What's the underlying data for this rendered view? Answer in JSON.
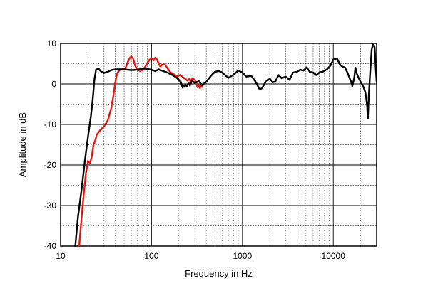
{
  "chart_data": {
    "type": "line",
    "xlabel": "Frequency in Hz",
    "ylabel": "Amplitude in dB",
    "xscale": "log",
    "xlim": [
      10,
      30000
    ],
    "ylim": [
      -40,
      10
    ],
    "grid": true,
    "x_tick_labels": [
      "10",
      "100",
      "1000",
      "10000"
    ],
    "y_tick_labels": [
      "10",
      "0",
      "-10",
      "-20",
      "-30",
      "-40"
    ],
    "series": [
      {
        "color": "#000000",
        "points": [
          [
            14.5,
            -40
          ],
          [
            15.5,
            -33
          ],
          [
            17,
            -26
          ],
          [
            18.5,
            -19
          ],
          [
            20,
            -13
          ],
          [
            21.5,
            -8
          ],
          [
            22.5,
            -4
          ],
          [
            23.5,
            1
          ],
          [
            24.5,
            3.5
          ],
          [
            26,
            3.8
          ],
          [
            28,
            3.0
          ],
          [
            30,
            2.7
          ],
          [
            33,
            3.0
          ],
          [
            36,
            3.4
          ],
          [
            40,
            3.6
          ],
          [
            50,
            3.6
          ],
          [
            60,
            3.4
          ],
          [
            70,
            3.5
          ],
          [
            80,
            3.8
          ],
          [
            90,
            3.7
          ],
          [
            100,
            3.5
          ],
          [
            110,
            3.2
          ],
          [
            120,
            3.6
          ],
          [
            130,
            3.3
          ],
          [
            150,
            2.8
          ],
          [
            170,
            2.2
          ],
          [
            190,
            1.5
          ],
          [
            210,
            0.5
          ],
          [
            220,
            -0.9
          ],
          [
            235,
            -0.2
          ],
          [
            245,
            -0.6
          ],
          [
            255,
            0.3
          ],
          [
            265,
            -0.4
          ],
          [
            280,
            0.8
          ],
          [
            300,
            0.2
          ],
          [
            330,
            0.7
          ],
          [
            360,
            -0.3
          ],
          [
            400,
            0.5
          ],
          [
            450,
            2.0
          ],
          [
            500,
            3.0
          ],
          [
            550,
            3.2
          ],
          [
            600,
            2.8
          ],
          [
            700,
            1.5
          ],
          [
            800,
            2.3
          ],
          [
            900,
            3.3
          ],
          [
            1000,
            2.8
          ],
          [
            1100,
            1.8
          ],
          [
            1250,
            2.0
          ],
          [
            1400,
            0.5
          ],
          [
            1550,
            -1.4
          ],
          [
            1650,
            -1.0
          ],
          [
            1800,
            0.5
          ],
          [
            2000,
            1.3
          ],
          [
            2150,
            0.4
          ],
          [
            2300,
            0.6
          ],
          [
            2500,
            2.2
          ],
          [
            2700,
            1.4
          ],
          [
            3000,
            1.8
          ],
          [
            3300,
            1.0
          ],
          [
            3600,
            2.8
          ],
          [
            4000,
            3.0
          ],
          [
            4300,
            3.5
          ],
          [
            4700,
            3.3
          ],
          [
            5100,
            4.1
          ],
          [
            5500,
            3.0
          ],
          [
            6000,
            2.8
          ],
          [
            6500,
            2.2
          ],
          [
            7000,
            2.8
          ],
          [
            7800,
            3.1
          ],
          [
            8500,
            3.6
          ],
          [
            9300,
            4.5
          ],
          [
            10000,
            6.0
          ],
          [
            11000,
            6.3
          ],
          [
            11800,
            4.8
          ],
          [
            12500,
            4.3
          ],
          [
            13500,
            4.0
          ],
          [
            14500,
            2.5
          ],
          [
            15500,
            0.8
          ],
          [
            16200,
            -0.5
          ],
          [
            17000,
            1.5
          ],
          [
            17500,
            4.0
          ],
          [
            18200,
            2.5
          ],
          [
            19000,
            1.5
          ],
          [
            20000,
            0.5
          ],
          [
            21500,
            -0.8
          ],
          [
            22500,
            -2.0
          ],
          [
            23500,
            -5.0
          ],
          [
            24000,
            -8.5
          ],
          [
            24600,
            -3
          ],
          [
            25500,
            3
          ],
          [
            26500,
            8.5
          ],
          [
            27500,
            10
          ],
          [
            28500,
            9.0
          ],
          [
            29300,
            4
          ],
          [
            30000,
            0.5
          ]
        ]
      },
      {
        "color": "#e8150f",
        "points": [
          [
            16,
            -40
          ],
          [
            17,
            -33
          ],
          [
            18,
            -27
          ],
          [
            19,
            -22
          ],
          [
            20,
            -19
          ],
          [
            21,
            -19.5
          ],
          [
            22,
            -18
          ],
          [
            23,
            -15
          ],
          [
            24,
            -14
          ],
          [
            25,
            -12.5
          ],
          [
            27,
            -11.5
          ],
          [
            30,
            -10.5
          ],
          [
            33,
            -9
          ],
          [
            36,
            -6
          ],
          [
            38,
            -3
          ],
          [
            40,
            0.5
          ],
          [
            42,
            2.7
          ],
          [
            45,
            3.5
          ],
          [
            48,
            3.6
          ],
          [
            52,
            4.0
          ],
          [
            55,
            5.5
          ],
          [
            58,
            6.5
          ],
          [
            60,
            6.8
          ],
          [
            63,
            6.2
          ],
          [
            66,
            4.5
          ],
          [
            70,
            3.5
          ],
          [
            75,
            3.2
          ],
          [
            80,
            3.5
          ],
          [
            85,
            4.2
          ],
          [
            90,
            5.2
          ],
          [
            95,
            6.0
          ],
          [
            100,
            6.3
          ],
          [
            105,
            5.8
          ],
          [
            110,
            6.5
          ],
          [
            115,
            6.0
          ],
          [
            120,
            5.0
          ],
          [
            125,
            4.3
          ],
          [
            130,
            4.7
          ],
          [
            140,
            4.8
          ],
          [
            150,
            3.9
          ],
          [
            160,
            3.0
          ],
          [
            170,
            2.5
          ],
          [
            180,
            2.3
          ],
          [
            190,
            1.8
          ],
          [
            200,
            2.1
          ],
          [
            210,
            2.2
          ],
          [
            220,
            1.7
          ],
          [
            230,
            1.4
          ],
          [
            240,
            1.1
          ],
          [
            250,
            0.8
          ],
          [
            260,
            1.3
          ],
          [
            270,
            0.6
          ],
          [
            280,
            1.4
          ],
          [
            290,
            1.2
          ],
          [
            300,
            1.0
          ],
          [
            310,
            0.3
          ],
          [
            320,
            -0.8
          ],
          [
            330,
            -0.3
          ],
          [
            340,
            -1.0
          ],
          [
            350,
            -0.5
          ],
          [
            360,
            -0.7
          ],
          [
            370,
            -0.2
          ]
        ]
      }
    ]
  }
}
